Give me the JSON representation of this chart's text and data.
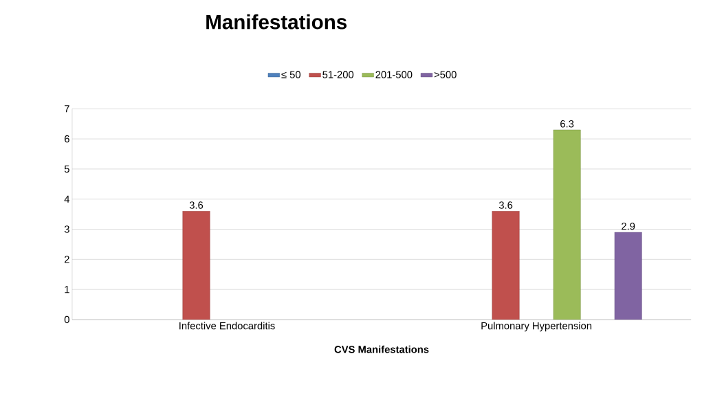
{
  "chart_data": {
    "type": "bar",
    "title": "Manifestations",
    "xlabel": "CVS Manifestations",
    "categories": [
      "Infective Endocarditis",
      "Pulmonary Hypertension"
    ],
    "series": [
      {
        "name": "≤ 50",
        "color": "#4f81bd",
        "values": [
          null,
          null
        ]
      },
      {
        "name": "51-200",
        "color": "#c0504d",
        "values": [
          3.6,
          3.6
        ]
      },
      {
        "name": "201-500",
        "color": "#9bbb59",
        "values": [
          null,
          6.3
        ]
      },
      {
        "name": ">500",
        "color": "#8064a2",
        "values": [
          null,
          2.9
        ]
      }
    ],
    "ylim": [
      0,
      7
    ],
    "yticks": [
      0,
      1,
      2,
      3,
      4,
      5,
      6,
      7
    ],
    "grid": "y",
    "legend": "top",
    "data_labels": true
  }
}
